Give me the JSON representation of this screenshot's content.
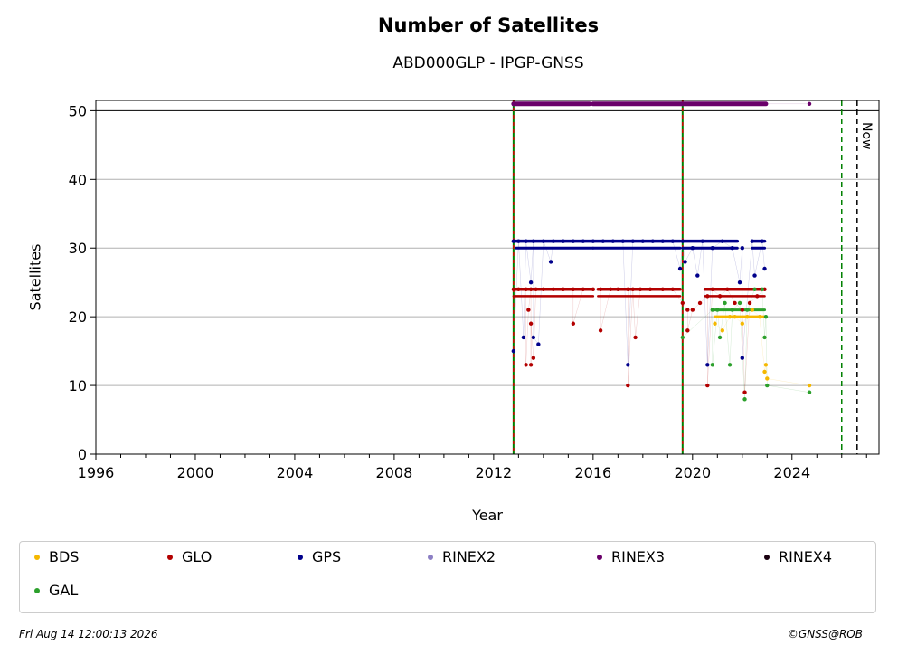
{
  "header": {
    "title": "Number of Satellites",
    "subtitle": "ABD000GLP - IPGP-GNSS"
  },
  "footer": {
    "timestamp": "Fri Aug 14 12:00:13 2026",
    "credit": "©GNSS@ROB"
  },
  "chart_data": {
    "type": "scatter",
    "title": "Number of Satellites",
    "subtitle": "ABD000GLP - IPGP-GNSS",
    "xlabel": "Year",
    "ylabel": "Satellites",
    "xlim": [
      1996,
      2027.5
    ],
    "ylim": [
      0,
      51.5
    ],
    "x_ticks": [
      1996,
      2000,
      2004,
      2008,
      2012,
      2016,
      2020,
      2024
    ],
    "y_ticks": [
      0,
      10,
      20,
      30,
      40,
      50
    ],
    "grid": "horizontal",
    "legend_placement": "below",
    "now_label": "Now",
    "vertical_lines": [
      {
        "x": 2012.8,
        "style": "red-green dashed"
      },
      {
        "x": 2019.6,
        "style": "red-green dashed"
      },
      {
        "x": 2026.0,
        "style": "green dashed"
      },
      {
        "x": 2026.62,
        "style": "black dashed"
      }
    ],
    "series": [
      {
        "name": "BDS",
        "color": "#f5b800",
        "x": [
          2020.9,
          2021.2,
          2021.5,
          2021.7,
          2022.0,
          2022.2,
          2022.4,
          2022.7,
          2022.9,
          2022.95,
          2023.0,
          2024.7
        ],
        "y": [
          19,
          18,
          20,
          20,
          19,
          20,
          21,
          20,
          12,
          13,
          11,
          10
        ]
      },
      {
        "name": "GLO",
        "color": "#b30000",
        "x": [
          2012.8,
          2013.0,
          2013.3,
          2013.5,
          2013.7,
          2014.0,
          2014.4,
          2014.8,
          2015.2,
          2015.6,
          2016.0,
          2016.3,
          2016.7,
          2017.0,
          2017.4,
          2017.6,
          2017.9,
          2018.3,
          2018.8,
          2019.2,
          2019.6,
          2019.8,
          2020.0,
          2020.3,
          2020.6,
          2020.8,
          2021.1,
          2021.4,
          2021.7,
          2022.0,
          2022.3,
          2022.6,
          2022.9,
          2013.3,
          2013.5,
          2013.6,
          2015.2,
          2016.3,
          2017.4,
          2017.7,
          2020.6,
          2022.1,
          2013.4,
          2013.5,
          2019.8
        ],
        "y": [
          24,
          24,
          24,
          24,
          24,
          24,
          24,
          24,
          24,
          24,
          24,
          24,
          24,
          24,
          24,
          24,
          24,
          24,
          24,
          24,
          22,
          21,
          21,
          22,
          23,
          24,
          23,
          24,
          22,
          21,
          22,
          23,
          24,
          13,
          13,
          14,
          19,
          18,
          10,
          17,
          10,
          9,
          21,
          19,
          18
        ]
      },
      {
        "name": "GPS",
        "color": "#00008b",
        "x": [
          2012.8,
          2013.0,
          2013.3,
          2013.6,
          2014.0,
          2014.4,
          2014.8,
          2015.2,
          2015.6,
          2016.0,
          2016.4,
          2016.8,
          2017.2,
          2017.6,
          2018.0,
          2018.4,
          2018.8,
          2019.2,
          2019.6,
          2020.0,
          2020.4,
          2020.8,
          2021.2,
          2021.6,
          2022.0,
          2022.4,
          2022.8,
          2012.8,
          2013.2,
          2013.5,
          2013.6,
          2013.8,
          2014.3,
          2017.4,
          2019.5,
          2019.7,
          2020.2,
          2020.6,
          2022.0,
          2022.9,
          2021.9,
          2022.5
        ],
        "y": [
          31,
          31,
          31,
          31,
          31,
          31,
          31,
          31,
          31,
          31,
          31,
          31,
          31,
          31,
          31,
          31,
          31,
          31,
          31,
          30,
          31,
          30,
          31,
          30,
          30,
          31,
          31,
          15,
          17,
          25,
          17,
          16,
          28,
          13,
          27,
          28,
          26,
          13,
          14,
          27,
          25,
          26
        ]
      },
      {
        "name": "RINEX2",
        "color": "#8c7fc4",
        "x": [],
        "y": []
      },
      {
        "name": "RINEX3",
        "color": "#6a006a",
        "x": [
          2012.8,
          2013.5,
          2014.5,
          2015.5,
          2016.5,
          2017.5,
          2018.5,
          2019.5,
          2020.5,
          2021.5,
          2022.5,
          2022.9,
          2024.7
        ],
        "y": [
          51,
          51,
          51,
          51,
          51,
          51,
          51,
          51,
          51,
          51,
          51,
          51,
          51
        ]
      },
      {
        "name": "RINEX4",
        "color": "#1a0010",
        "x": [],
        "y": []
      },
      {
        "name": "GAL",
        "color": "#2ca02c",
        "x": [
          2020.8,
          2021.0,
          2021.3,
          2021.6,
          2021.9,
          2022.2,
          2022.5,
          2022.8,
          2022.95,
          2020.8,
          2021.5,
          2022.1,
          2023.0,
          2024.7,
          2019.6,
          2021.1,
          2022.9
        ],
        "y": [
          21,
          21,
          22,
          21,
          22,
          21,
          24,
          24,
          20,
          13,
          13,
          8,
          10,
          9,
          17,
          17,
          17
        ]
      }
    ]
  },
  "legend": {
    "items": [
      {
        "label": "BDS",
        "color": "#f5b800"
      },
      {
        "label": "GLO",
        "color": "#b30000"
      },
      {
        "label": "GPS",
        "color": "#00008b"
      },
      {
        "label": "RINEX2",
        "color": "#8c7fc4"
      },
      {
        "label": "RINEX3",
        "color": "#6a006a"
      },
      {
        "label": "RINEX4",
        "color": "#1a0010"
      },
      {
        "label": "GAL",
        "color": "#2ca02c"
      }
    ]
  }
}
